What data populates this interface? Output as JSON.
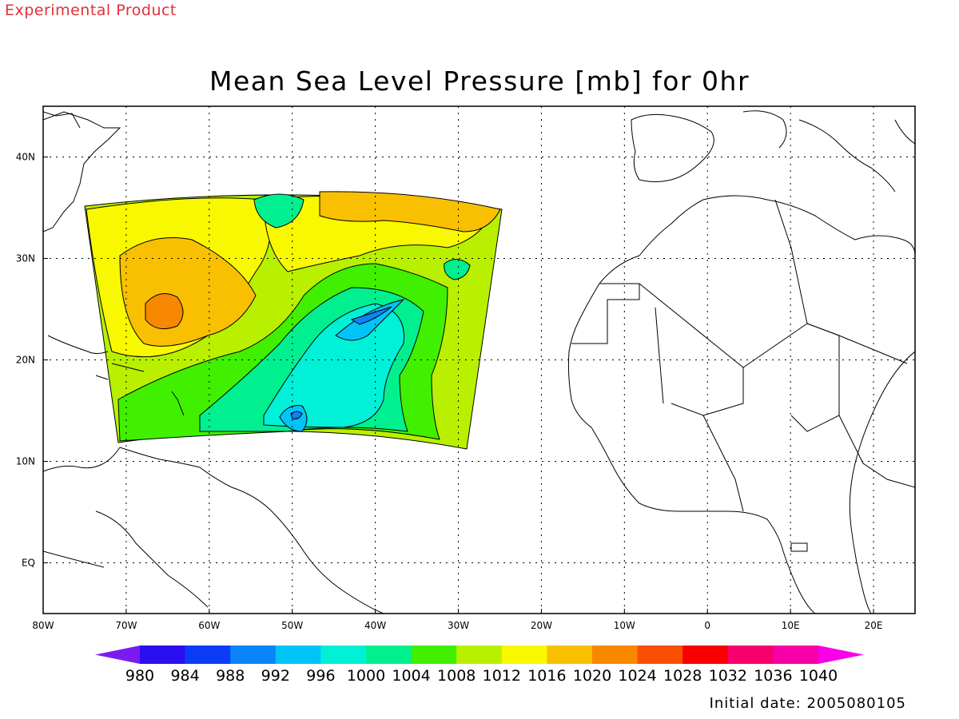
{
  "header": {
    "tag": "Experimental Product",
    "title": "Mean Sea Level Pressure [mb] for 0hr",
    "initial_date": "Initial date: 2005080105"
  },
  "map": {
    "lon_labels": [
      "80W",
      "70W",
      "60W",
      "50W",
      "40W",
      "30W",
      "20W",
      "10W",
      "0",
      "10E",
      "20E"
    ],
    "lat_labels": [
      "40N",
      "30N",
      "20N",
      "10N",
      "EQ"
    ],
    "grid": true,
    "regions": [
      {
        "name": "low-995-core",
        "level": 992
      },
      {
        "name": "low-998-core-s",
        "level": 996
      },
      {
        "name": "high-1022-w",
        "level": 1020
      },
      {
        "name": "high-1020-ne",
        "level": 1020
      }
    ]
  },
  "colorbar": {
    "levels": [
      "980",
      "984",
      "988",
      "992",
      "996",
      "1000",
      "1004",
      "1008",
      "1012",
      "1016",
      "1020",
      "1024",
      "1028",
      "1032",
      "1036",
      "1040"
    ],
    "colors": [
      "#7a1cf0",
      "#2a10f0",
      "#0a3cf8",
      "#0a84f8",
      "#00c4f8",
      "#00f0d8",
      "#00f090",
      "#40f000",
      "#b8f000",
      "#f8f800",
      "#f8c000",
      "#f88800",
      "#f85000",
      "#f80000",
      "#f8006c",
      "#f800a8",
      "#f800e8"
    ]
  }
}
